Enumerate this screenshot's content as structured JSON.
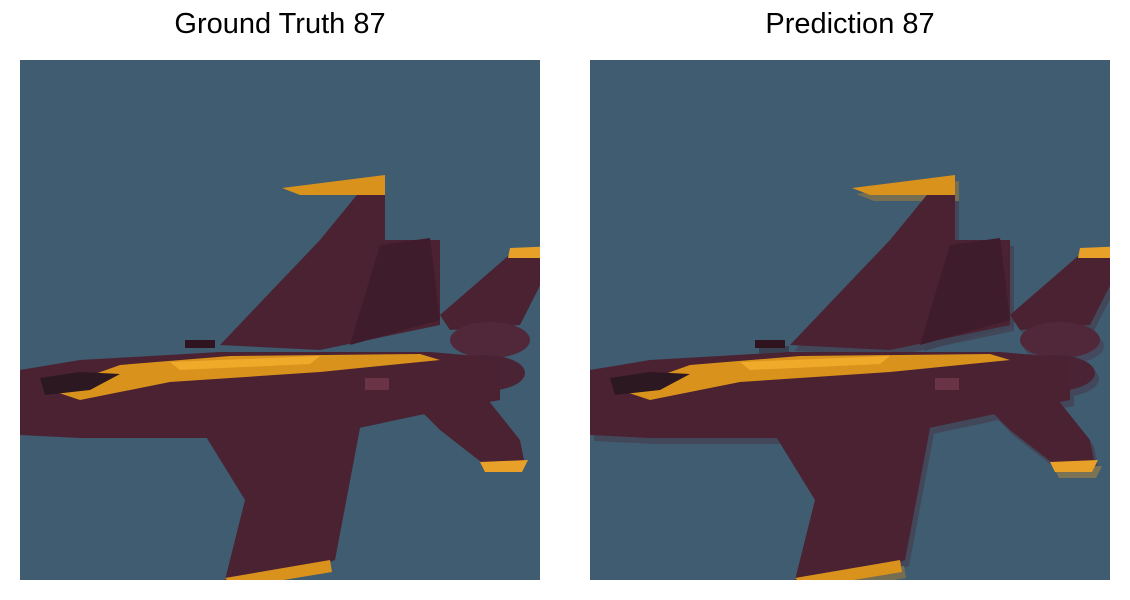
{
  "panels": [
    {
      "title": "Ground Truth 87",
      "image_subject": "fighter-jet-image"
    },
    {
      "title": "Prediction 87",
      "image_subject": "fighter-jet-image"
    }
  ],
  "colors": {
    "sky": "#3f5c70",
    "fuselage": "#4a2232",
    "fuselage_dark": "#3a1a27",
    "stripe": "#d9921c",
    "stripe_light": "#f0aa2a",
    "halo": "#8a6a80"
  }
}
